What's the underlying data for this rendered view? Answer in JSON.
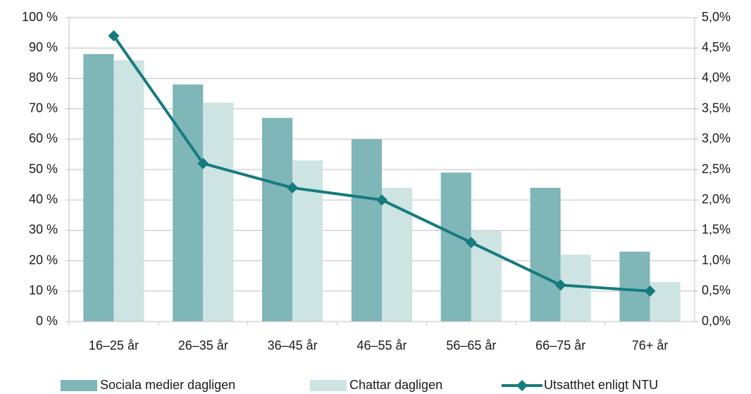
{
  "chart_data": {
    "type": "bar",
    "categories": [
      "16–25 år",
      "26–35 år",
      "36–45 år",
      "46–55 år",
      "56–65 år",
      "66–75 år",
      "76+ år"
    ],
    "series": [
      {
        "name": "Sociala medier dagligen",
        "color": "#7fb6b8",
        "values": [
          88,
          78,
          67,
          60,
          49,
          44,
          23
        ]
      },
      {
        "name": "Chattar dagligen",
        "color": "#cde4e3",
        "values": [
          86,
          72,
          53,
          44,
          30,
          22,
          13
        ]
      },
      {
        "name": "Utsatthet enligt NTU",
        "color": "#167b7e",
        "type": "line",
        "axis": "y2",
        "values": [
          4.7,
          2.6,
          2.2,
          2.0,
          1.3,
          0.6,
          0.5
        ]
      }
    ],
    "ylim": [
      0,
      100
    ],
    "yticks": [
      {
        "value": 0,
        "label": "0 %"
      },
      {
        "value": 10,
        "label": "10 %"
      },
      {
        "value": 20,
        "label": "20 %"
      },
      {
        "value": 30,
        "label": "30 %"
      },
      {
        "value": 40,
        "label": "40 %"
      },
      {
        "value": 50,
        "label": "50 %"
      },
      {
        "value": 60,
        "label": "60 %"
      },
      {
        "value": 70,
        "label": "70 %"
      },
      {
        "value": 80,
        "label": "80 %"
      },
      {
        "value": 90,
        "label": "90 %"
      },
      {
        "value": 100,
        "label": "100 %"
      }
    ],
    "y2lim": [
      0,
      5
    ],
    "y2ticks": [
      {
        "value": 0,
        "label": "0,0%"
      },
      {
        "value": 0.5,
        "label": "0,5%"
      },
      {
        "value": 1,
        "label": "1,0%"
      },
      {
        "value": 1.5,
        "label": "1,5%"
      },
      {
        "value": 2,
        "label": "2,0%"
      },
      {
        "value": 2.5,
        "label": "2,5%"
      },
      {
        "value": 3,
        "label": "3,0%"
      },
      {
        "value": 3.5,
        "label": "3,5%"
      },
      {
        "value": 4,
        "label": "4,0%"
      },
      {
        "value": 4.5,
        "label": "4,5%"
      },
      {
        "value": 5,
        "label": "5,0%"
      }
    ],
    "grid": true,
    "legend": "bottom"
  }
}
